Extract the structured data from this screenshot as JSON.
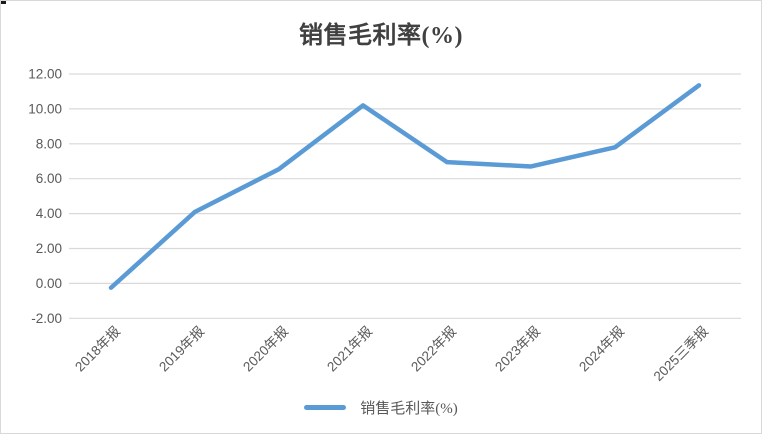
{
  "window": {
    "background": "#ffffff",
    "border_color": "#d9d9d9"
  },
  "chart_data": {
    "type": "line",
    "title": "销售毛利率(%)",
    "title_color": "#404040",
    "categories": [
      "2018年报",
      "2019年报",
      "2020年报",
      "2021年报",
      "2022年报",
      "2023年报",
      "2024年报",
      "2025三季报"
    ],
    "series": [
      {
        "name": "销售毛利率(%)",
        "color": "#5b9bd5",
        "values": [
          -0.25,
          4.1,
          6.55,
          10.2,
          6.95,
          6.7,
          7.8,
          11.35
        ]
      }
    ],
    "ylim": [
      -2,
      12
    ],
    "ytick_step": 2,
    "yticks": [
      {
        "label": "12.00",
        "value": 12
      },
      {
        "label": "10.00",
        "value": 10
      },
      {
        "label": "8.00",
        "value": 8
      },
      {
        "label": "6.00",
        "value": 6
      },
      {
        "label": "4.00",
        "value": 4
      },
      {
        "label": "2.00",
        "value": 2
      },
      {
        "label": "0.00",
        "value": 0
      },
      {
        "label": "-2.00",
        "value": -2
      }
    ],
    "grid": true,
    "gridline_color": "#d9d9d9",
    "axis_label_color": "#595959",
    "x_label_rotation_deg": 45,
    "legend_position": "bottom"
  },
  "legend": {
    "label": "销售毛利率(%)",
    "swatch_color": "#5b9bd5",
    "label_color": "#595959"
  }
}
